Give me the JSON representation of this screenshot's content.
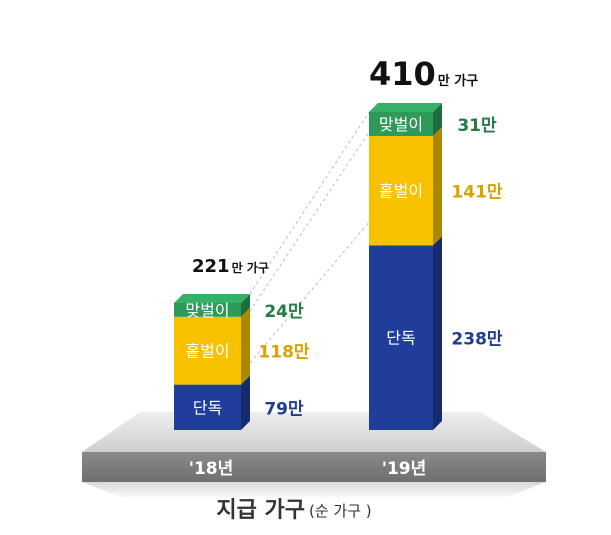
{
  "chart_data": {
    "type": "bar",
    "stacked": true,
    "categories": [
      "'18년",
      "'19년"
    ],
    "series": [
      {
        "name": "단독",
        "values": [
          79,
          238
        ],
        "labels": [
          "79만",
          "238만"
        ]
      },
      {
        "name": "홑벌이",
        "values": [
          118,
          141
        ],
        "labels": [
          "118만",
          "141만"
        ]
      },
      {
        "name": "맞벌이",
        "values": [
          24,
          31
        ],
        "labels": [
          "24만",
          "31만"
        ]
      }
    ],
    "totals": [
      {
        "number": "221",
        "unit": "만 가구",
        "value": 221
      },
      {
        "number": "410",
        "unit": "만 가구",
        "value": 410
      }
    ],
    "title": "지급 가구",
    "subtitle": "(순 가구 )",
    "colors": {
      "단독": "#1f3d9a",
      "홑벌이": "#f7c100",
      "맞벌이": "#2e9a5a",
      "label_단독": "#1f3d8a",
      "label_홑벌이": "#d9a400",
      "label_맞벌이": "#237a45"
    }
  }
}
